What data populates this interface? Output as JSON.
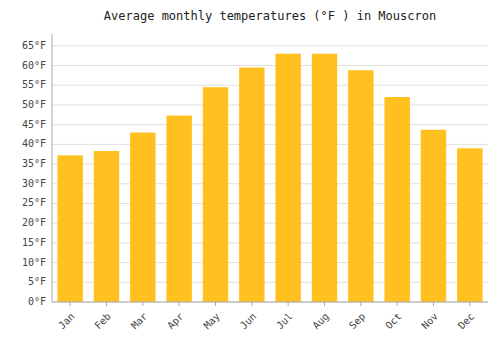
{
  "chart_data": {
    "type": "bar",
    "title": "Average monthly temperatures (°F ) in Mouscron",
    "categories": [
      "Jan",
      "Feb",
      "Mar",
      "Apr",
      "May",
      "Jun",
      "Jul",
      "Aug",
      "Sep",
      "Oct",
      "Nov",
      "Dec"
    ],
    "values": [
      37.2,
      38.3,
      43.0,
      47.3,
      54.5,
      59.5,
      63.0,
      63.0,
      58.8,
      52.0,
      43.7,
      39.0
    ],
    "color": "#FFC020",
    "ylim": [
      0,
      68
    ],
    "yticks": [
      {
        "value": 0,
        "label": "0°F"
      },
      {
        "value": 5,
        "label": "5°F"
      },
      {
        "value": 10,
        "label": "10°F"
      },
      {
        "value": 15,
        "label": "15°F"
      },
      {
        "value": 20,
        "label": "20°F"
      },
      {
        "value": 25,
        "label": "25°F"
      },
      {
        "value": 30,
        "label": "30°F"
      },
      {
        "value": 35,
        "label": "35°F"
      },
      {
        "value": 40,
        "label": "40°F"
      },
      {
        "value": 45,
        "label": "45°F"
      },
      {
        "value": 50,
        "label": "50°F"
      },
      {
        "value": 55,
        "label": "55°F"
      },
      {
        "value": 60,
        "label": "60°F"
      },
      {
        "value": 65,
        "label": "65°F"
      }
    ],
    "grid": true
  }
}
